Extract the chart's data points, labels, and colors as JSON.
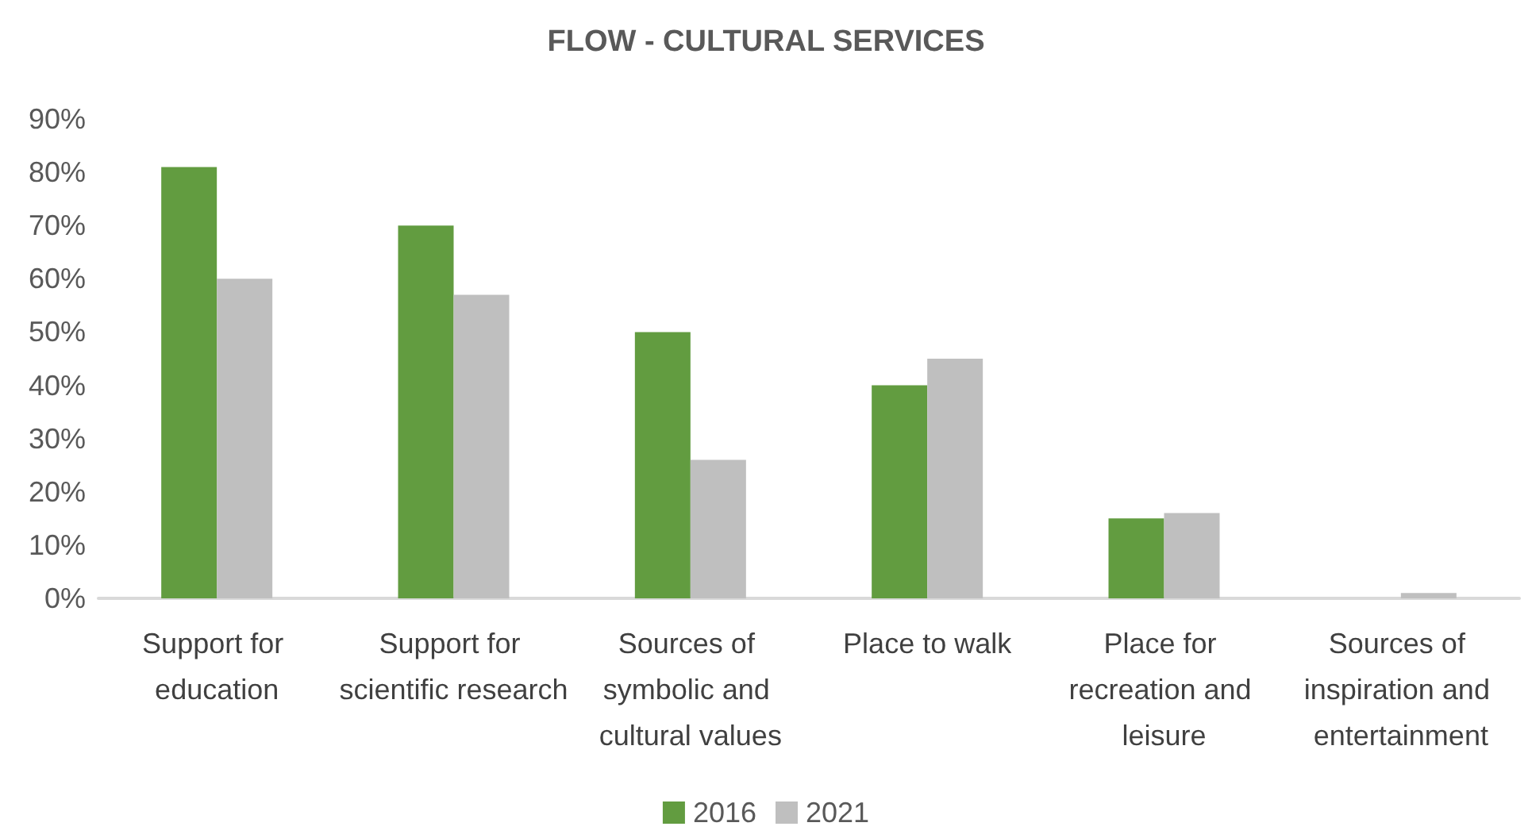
{
  "chart_data": {
    "type": "bar",
    "title": "FLOW - CULTURAL SERVICES",
    "categories": [
      "Support for education",
      "Support for scientific research",
      "Sources of symbolic and cultural values",
      "Place to walk",
      "Place for recreation and leisure",
      "Sources of inspiration and entertainment"
    ],
    "series": [
      {
        "name": "2016",
        "color": "#629c40",
        "values": [
          81,
          70,
          50,
          40,
          15,
          0
        ]
      },
      {
        "name": "2021",
        "color": "#bfbfbf",
        "values": [
          60,
          57,
          26,
          45,
          16,
          1
        ]
      }
    ],
    "ylim": [
      0,
      90
    ],
    "yticks": [
      {
        "value": 0,
        "label": "0%"
      },
      {
        "value": 10,
        "label": "10%"
      },
      {
        "value": 20,
        "label": "20%"
      },
      {
        "value": 30,
        "label": "30%"
      },
      {
        "value": 40,
        "label": "40%"
      },
      {
        "value": 50,
        "label": "50%"
      },
      {
        "value": 60,
        "label": "60%"
      },
      {
        "value": 70,
        "label": "70%"
      },
      {
        "value": 80,
        "label": "80%"
      },
      {
        "value": 90,
        "label": "90%"
      }
    ],
    "grid": false,
    "legend": "bottom"
  }
}
